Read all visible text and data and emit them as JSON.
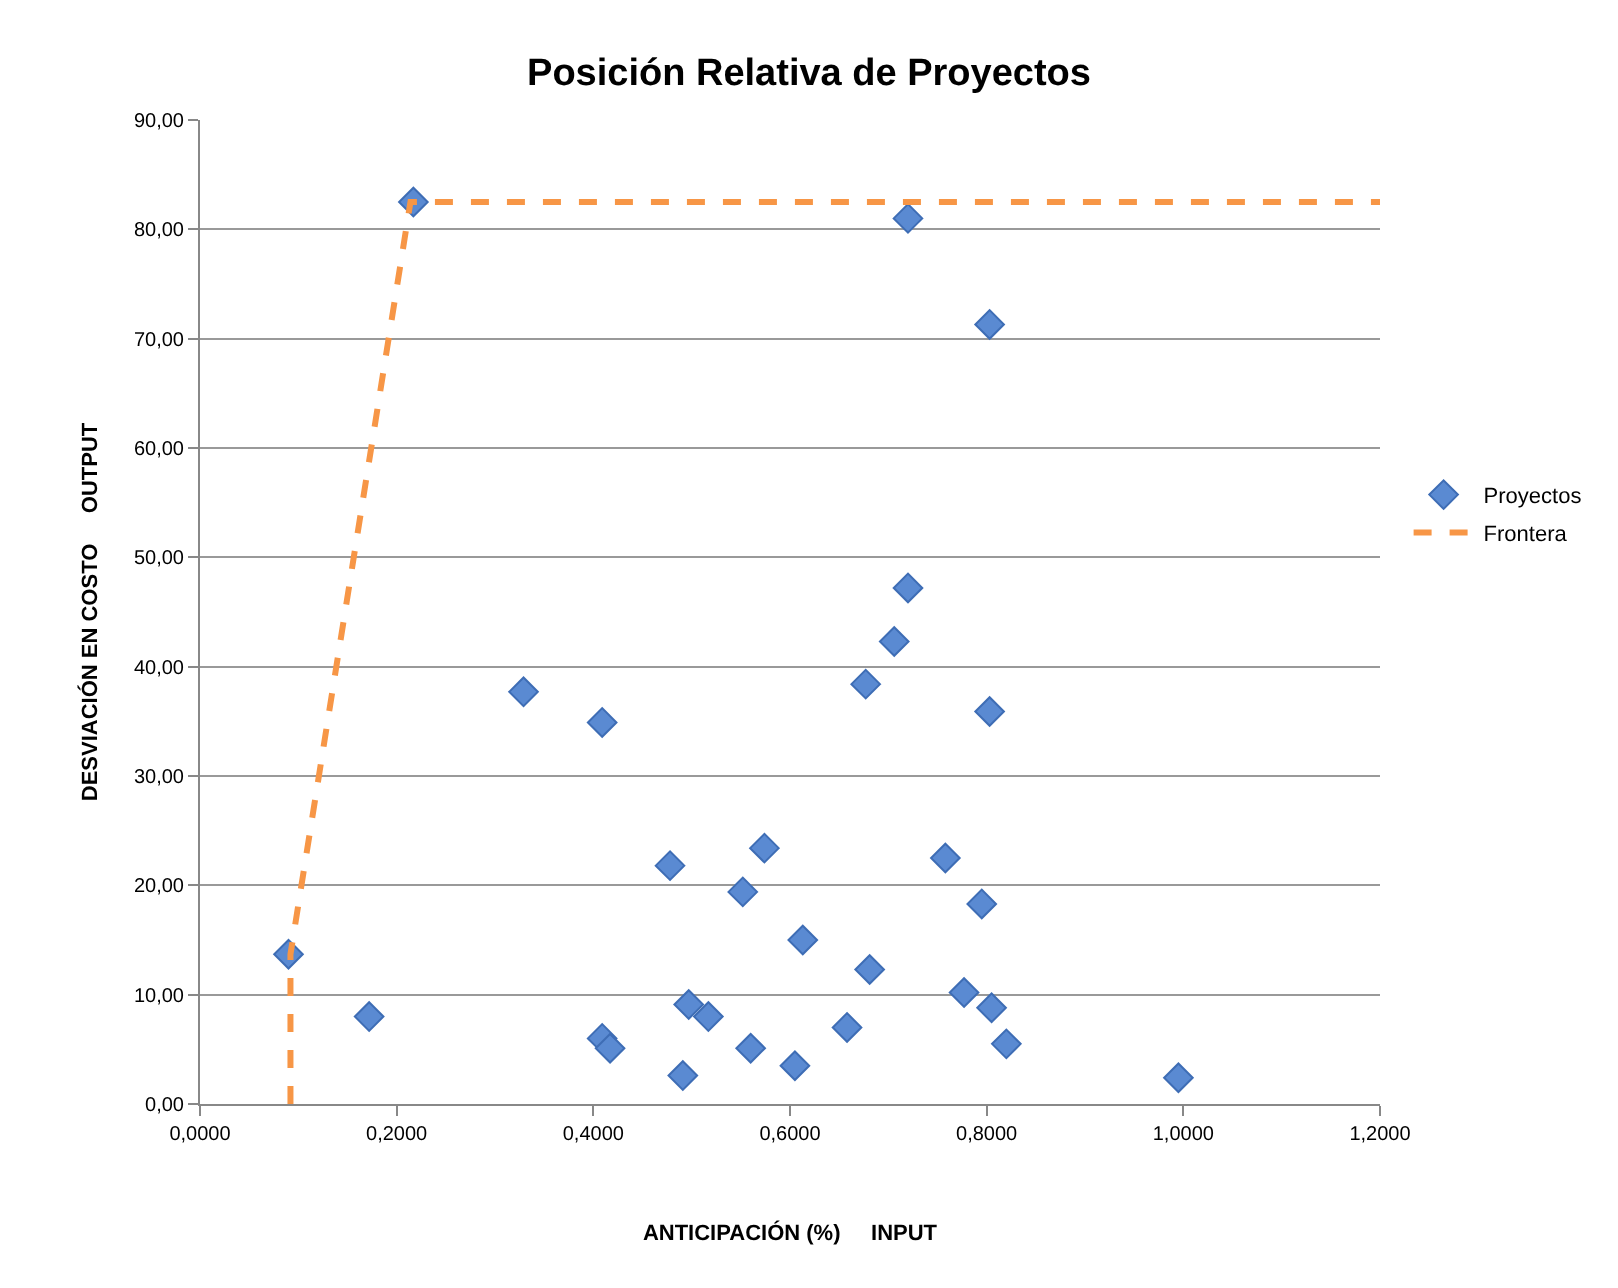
{
  "chart_data": {
    "type": "scatter",
    "title": "Posición Relativa de Proyectos",
    "xlabel": "ANTICIPACIÓN (%)     INPUT",
    "ylabel": "DESVIACIÓN EN COSTO     OUTPUT",
    "xlim": [
      0,
      1.2
    ],
    "ylim": [
      0,
      90
    ],
    "xticks": [
      {
        "value": 0,
        "label": "0,0000"
      },
      {
        "value": 0.2,
        "label": "0,2000"
      },
      {
        "value": 0.4,
        "label": "0,4000"
      },
      {
        "value": 0.6,
        "label": "0,6000"
      },
      {
        "value": 0.8,
        "label": "0,8000"
      },
      {
        "value": 1,
        "label": "1,0000"
      },
      {
        "value": 1.2,
        "label": "1,2000"
      }
    ],
    "yticks": [
      {
        "value": 0,
        "label": "0,00"
      },
      {
        "value": 10,
        "label": "10,00"
      },
      {
        "value": 20,
        "label": "20,00"
      },
      {
        "value": 30,
        "label": "30,00"
      },
      {
        "value": 40,
        "label": "40,00"
      },
      {
        "value": 50,
        "label": "50,00"
      },
      {
        "value": 60,
        "label": "60,00"
      },
      {
        "value": 70,
        "label": "70,00"
      },
      {
        "value": 80,
        "label": "80,00"
      },
      {
        "value": 90,
        "label": "90,00"
      }
    ],
    "grid": "y",
    "legend": "right",
    "series": [
      {
        "name": "Proyectos",
        "type": "scatter",
        "marker": "diamond",
        "color": "#5a8ad2",
        "x": [
          0.09,
          0.172,
          0.329,
          0.409,
          0.478,
          0.409,
          0.417,
          0.491,
          0.497,
          0.517,
          0.552,
          0.574,
          0.56,
          0.613,
          0.605,
          0.658,
          0.677,
          0.706,
          0.72,
          0.217,
          0.72,
          0.803,
          0.803,
          0.681,
          0.758,
          0.795,
          0.777,
          0.805,
          0.82,
          0.995
        ],
        "values": [
          13.7,
          8.0,
          37.7,
          34.9,
          21.8,
          6.0,
          5.1,
          2.6,
          9.1,
          8.0,
          19.4,
          23.4,
          5.1,
          15.0,
          3.5,
          7.0,
          38.4,
          42.3,
          47.2,
          82.5,
          81.0,
          71.3,
          35.9,
          12.3,
          22.5,
          18.3,
          10.2,
          8.8,
          5.5,
          2.4
        ]
      },
      {
        "name": "Frontera",
        "type": "line",
        "marker": "none",
        "line_style": "dashed",
        "color": "#f79646",
        "x": [
          0.092,
          0.092,
          0.214,
          1.2
        ],
        "values": [
          0,
          13.7,
          82.5,
          82.5
        ]
      }
    ]
  }
}
